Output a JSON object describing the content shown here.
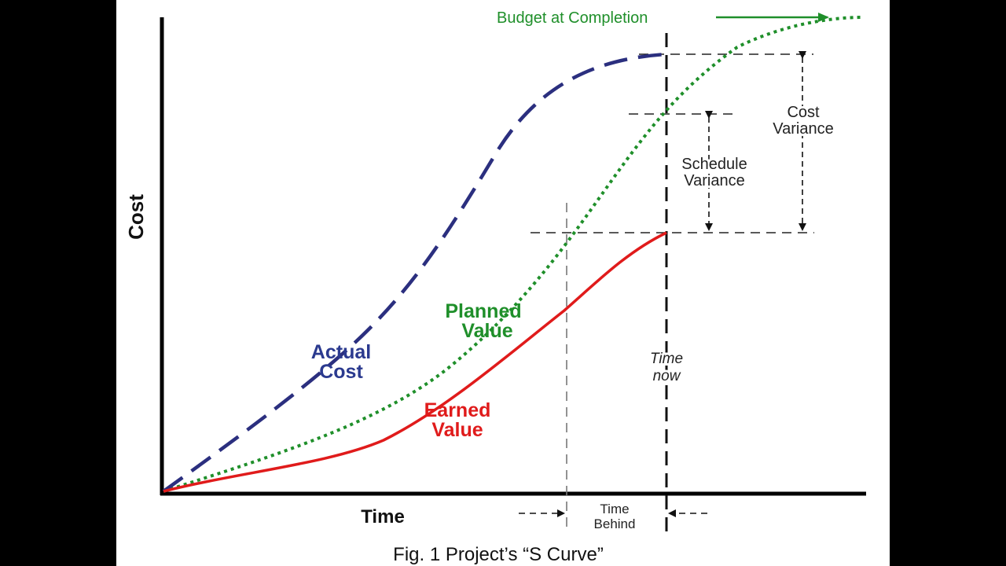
{
  "axes": {
    "y_label": "Cost",
    "x_label": "Time"
  },
  "curves": {
    "actual_cost": {
      "line1": "Actual",
      "line2": "Cost",
      "color": "#2b2f7f"
    },
    "planned_value": {
      "line1": "Planned",
      "line2": "Value",
      "color": "#1f8f2a"
    },
    "earned_value": {
      "line1": "Earned",
      "line2": "Value",
      "color": "#e01b1b"
    }
  },
  "annotations": {
    "budget_at_completion": "Budget at Completion",
    "cost_variance": {
      "line1": "Cost",
      "line2": "Variance"
    },
    "schedule_variance": {
      "line1": "Schedule",
      "line2": "Variance"
    },
    "time_now": {
      "line1": "Time",
      "line2": "now"
    },
    "time_behind": {
      "line1": "Time",
      "line2": "Behind"
    }
  },
  "caption": "Fig. 1 Project’s “S Curve”"
}
